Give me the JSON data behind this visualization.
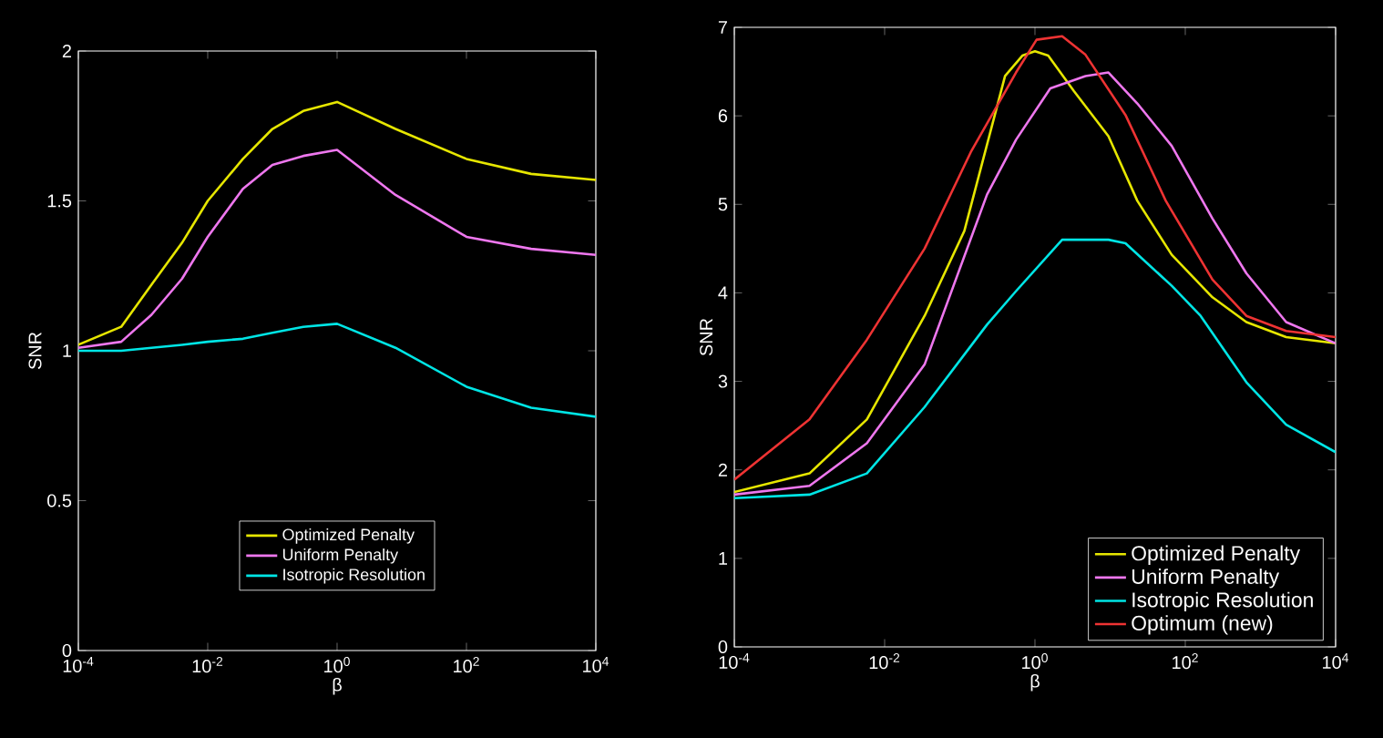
{
  "chart_data": [
    {
      "type": "line",
      "xlabel": "β",
      "ylabel": "SNR",
      "log": "x",
      "legend": "bottom",
      "xlim": [
        0.0001,
        10000
      ],
      "ylim": [
        0,
        2
      ],
      "xticks": [
        {
          "value": 0.0001,
          "label": "10$^{-4}$"
        },
        {
          "value": 0.01,
          "label": "10$^{-2}$"
        },
        {
          "value": 1,
          "label": "10$^{0}$"
        },
        {
          "value": 100,
          "label": "10$^{2}$"
        },
        {
          "value": 10000,
          "label": "10$^{4}$"
        }
      ],
      "yticks": [
        0,
        0.5,
        1,
        1.5,
        2
      ],
      "x": [
        0.0001,
        0.00046,
        0.00135,
        0.004,
        0.01,
        0.035,
        0.1,
        0.3,
        1,
        8,
        100,
        1000,
        10000
      ],
      "series": [
        {
          "name": "Optimized Penalty",
          "color": "#e6e600",
          "values": [
            1.02,
            1.08,
            1.22,
            1.36,
            1.5,
            1.64,
            1.74,
            1.8,
            1.83,
            1.74,
            1.64,
            1.59,
            1.57
          ]
        },
        {
          "name": "Uniform Penalty",
          "color": "#ee77ee",
          "values": [
            1.01,
            1.03,
            1.12,
            1.24,
            1.38,
            1.54,
            1.62,
            1.65,
            1.67,
            1.52,
            1.38,
            1.34,
            1.32
          ]
        },
        {
          "name": "Isotropic Resolution",
          "color": "#00e5e5",
          "values": [
            1.0,
            1.0,
            1.01,
            1.02,
            1.03,
            1.04,
            1.06,
            1.08,
            1.09,
            1.01,
            0.88,
            0.81,
            0.78
          ]
        }
      ]
    },
    {
      "type": "line",
      "xlabel": "β",
      "ylabel": "SNR",
      "log": "x",
      "legend": "bottom right",
      "xlim": [
        0.0001,
        10000
      ],
      "ylim": [
        0,
        7
      ],
      "xticks": [
        {
          "value": 0.0001,
          "label": "10$^{-4}$"
        },
        {
          "value": 0.01,
          "label": "10$^{-2}$"
        },
        {
          "value": 1,
          "label": "10$^{0}$"
        },
        {
          "value": 100,
          "label": "10$^{2}$"
        },
        {
          "value": 10000,
          "label": "10$^{4}$"
        }
      ],
      "yticks": [
        0,
        1,
        2,
        3,
        4,
        5,
        6,
        7
      ],
      "series": [
        {
          "name": "Optimized Penalty",
          "color": "#e6e600",
          "x": [
            0.0001,
            0.001,
            0.0058,
            0.034,
            0.115,
            0.4,
            0.68,
            1,
            1.5,
            3.3,
            9.5,
            23,
            66,
            230,
            650,
            2200,
            10000
          ],
          "values": [
            1.75,
            1.96,
            2.57,
            3.74,
            4.7,
            6.45,
            6.68,
            6.73,
            6.68,
            6.28,
            5.77,
            5.04,
            4.43,
            3.95,
            3.67,
            3.5,
            3.43
          ]
        },
        {
          "name": "Uniform Penalty",
          "color": "#ee77ee",
          "x": [
            0.0001,
            0.001,
            0.0058,
            0.034,
            0.23,
            0.56,
            1.6,
            4.7,
            9.5,
            23,
            66,
            230,
            650,
            2200,
            10000
          ],
          "values": [
            1.72,
            1.82,
            2.3,
            3.19,
            5.11,
            5.73,
            6.31,
            6.45,
            6.49,
            6.14,
            5.66,
            4.84,
            4.22,
            3.67,
            3.43
          ]
        },
        {
          "name": "Isotropic Resolution",
          "color": "#00e5e5",
          "x": [
            0.0001,
            0.001,
            0.0058,
            0.034,
            0.23,
            0.56,
            2.3,
            9.5,
            16,
            66,
            160,
            650,
            2200,
            10000
          ],
          "values": [
            1.68,
            1.72,
            1.96,
            2.71,
            3.64,
            4.02,
            4.6,
            4.6,
            4.56,
            4.08,
            3.74,
            2.99,
            2.51,
            2.2
          ]
        },
        {
          "name": "Optimum (new)",
          "color": "#ee3333",
          "x": [
            0.0001,
            0.001,
            0.0058,
            0.034,
            0.14,
            0.56,
            1.05,
            2.3,
            4.7,
            16,
            55,
            230,
            650,
            2200,
            10000
          ],
          "values": [
            1.89,
            2.57,
            3.47,
            4.5,
            5.59,
            6.49,
            6.86,
            6.9,
            6.69,
            6.01,
            5.04,
            4.15,
            3.74,
            3.57,
            3.5
          ]
        }
      ]
    }
  ]
}
